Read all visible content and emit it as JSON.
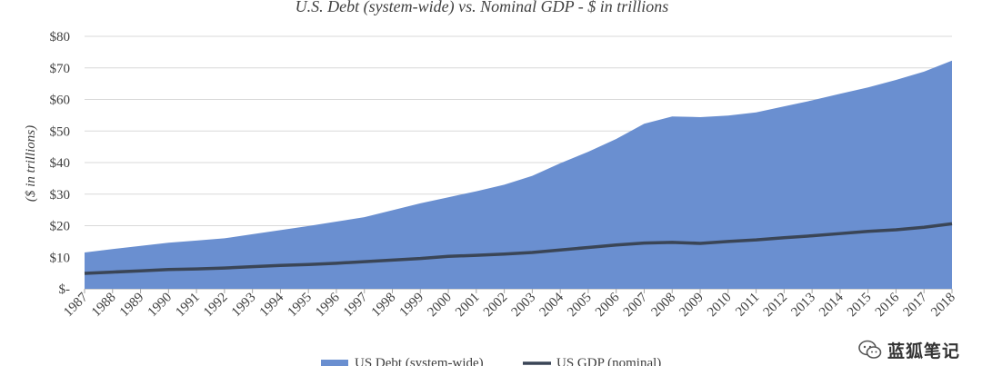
{
  "chart_data": {
    "type": "area",
    "title": "U.S. Debt (system-wide) vs. Nominal GDP - $ in trillions",
    "ylabel": "($ in trillions)",
    "ylim": [
      0,
      80
    ],
    "yticks": [
      {
        "value": 0,
        "label": "$-"
      },
      {
        "value": 10,
        "label": "$10"
      },
      {
        "value": 20,
        "label": "$20"
      },
      {
        "value": 30,
        "label": "$30"
      },
      {
        "value": 40,
        "label": "$40"
      },
      {
        "value": 50,
        "label": "$50"
      },
      {
        "value": 60,
        "label": "$60"
      },
      {
        "value": 70,
        "label": "$70"
      },
      {
        "value": 80,
        "label": "$80"
      }
    ],
    "categories": [
      "1987",
      "1988",
      "1989",
      "1990",
      "1991",
      "1992",
      "1993",
      "1994",
      "1995",
      "1996",
      "1997",
      "1998",
      "1999",
      "2000",
      "2001",
      "2002",
      "2003",
      "2004",
      "2005",
      "2006",
      "2007",
      "2008",
      "2009",
      "2010",
      "2011",
      "2012",
      "2013",
      "2014",
      "2015",
      "2016",
      "2017",
      "2018"
    ],
    "grid": true,
    "legend_position": "bottom",
    "series": [
      {
        "name": "US Debt (system-wide)",
        "type": "area",
        "color": "#6a8fd0",
        "values": [
          11.5,
          12.6,
          13.6,
          14.6,
          15.3,
          16.0,
          17.3,
          18.6,
          19.9,
          21.3,
          22.7,
          24.9,
          27.1,
          29.0,
          30.9,
          33.0,
          35.8,
          39.8,
          43.4,
          47.5,
          52.3,
          54.6,
          54.4,
          54.9,
          55.9,
          57.8,
          59.7,
          61.8,
          63.8,
          66.2,
          68.8,
          72.3
        ]
      },
      {
        "name": "US GDP (nominal)",
        "type": "line",
        "color": "#3a4556",
        "values": [
          4.9,
          5.3,
          5.7,
          6.1,
          6.3,
          6.6,
          7.0,
          7.4,
          7.7,
          8.1,
          8.6,
          9.1,
          9.6,
          10.3,
          10.6,
          11.0,
          11.5,
          12.3,
          13.1,
          13.9,
          14.5,
          14.7,
          14.4,
          15.0,
          15.5,
          16.2,
          16.8,
          17.5,
          18.2,
          18.7,
          19.5,
          20.6
        ]
      }
    ]
  },
  "watermark": {
    "text": "蓝狐笔记",
    "icon": "wechat-icon"
  }
}
